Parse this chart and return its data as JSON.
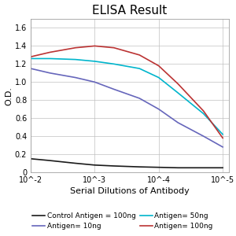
{
  "title": "ELISA Result",
  "ylabel": "O.D.",
  "xlabel": "Serial Dilutions of Antibody",
  "x_ticks": [
    0.01,
    0.001,
    0.0001,
    1e-05
  ],
  "x_tick_labels": [
    "10^-2",
    "10^-3",
    "10^-4",
    "10^-5"
  ],
  "ylim": [
    0,
    1.7
  ],
  "y_ticks": [
    0,
    0.2,
    0.4,
    0.6,
    0.8,
    1.0,
    1.2,
    1.4,
    1.6
  ],
  "lines": [
    {
      "label": "Control Antigen = 100ng",
      "color": "#1a1a1a",
      "x": [
        0.01,
        0.005,
        0.002,
        0.001,
        0.0005,
        0.0002,
        0.0001,
        5e-05,
        2e-05,
        1e-05
      ],
      "y": [
        0.15,
        0.13,
        0.1,
        0.08,
        0.07,
        0.06,
        0.055,
        0.05,
        0.05,
        0.05
      ]
    },
    {
      "label": "Antigen= 10ng",
      "color": "#6666bb",
      "x": [
        0.01,
        0.005,
        0.002,
        0.001,
        0.0005,
        0.0002,
        0.0001,
        5e-05,
        2e-05,
        1e-05
      ],
      "y": [
        1.15,
        1.1,
        1.05,
        1.0,
        0.92,
        0.82,
        0.7,
        0.55,
        0.4,
        0.28
      ]
    },
    {
      "label": "Antigen= 50ng",
      "color": "#00b5cc",
      "x": [
        0.01,
        0.005,
        0.002,
        0.001,
        0.0005,
        0.0002,
        0.0001,
        5e-05,
        2e-05,
        1e-05
      ],
      "y": [
        1.26,
        1.26,
        1.25,
        1.23,
        1.2,
        1.15,
        1.05,
        0.88,
        0.65,
        0.42
      ]
    },
    {
      "label": "Antigen= 100ng",
      "color": "#bb3333",
      "x": [
        0.01,
        0.005,
        0.002,
        0.001,
        0.0005,
        0.0002,
        0.0001,
        5e-05,
        2e-05,
        1e-05
      ],
      "y": [
        1.28,
        1.33,
        1.38,
        1.4,
        1.38,
        1.3,
        1.18,
        0.98,
        0.68,
        0.38
      ]
    }
  ],
  "grid_color": "#c0c0c0",
  "bg_color": "#ffffff",
  "legend_fontsize": 6.5,
  "title_fontsize": 11,
  "axis_label_fontsize": 8,
  "tick_fontsize": 7
}
